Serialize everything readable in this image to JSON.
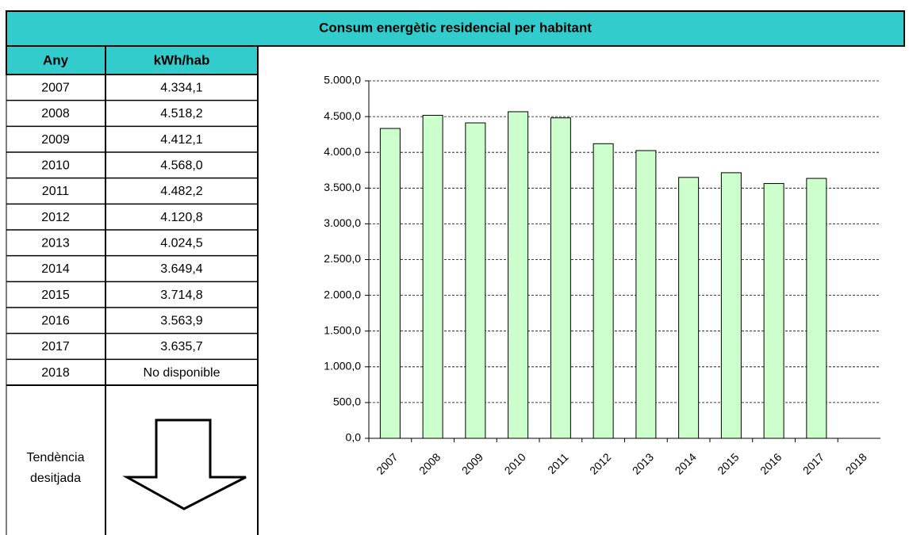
{
  "title": "Consum energètic residencial per habitant",
  "table": {
    "columns": [
      "Any",
      "kWh/hab"
    ],
    "rows": [
      [
        "2007",
        "4.334,1"
      ],
      [
        "2008",
        "4.518,2"
      ],
      [
        "2009",
        "4.412,1"
      ],
      [
        "2010",
        "4.568,0"
      ],
      [
        "2011",
        "4.482,2"
      ],
      [
        "2012",
        "4.120,8"
      ],
      [
        "2013",
        "4.024,5"
      ],
      [
        "2014",
        "3.649,4"
      ],
      [
        "2015",
        "3.714,8"
      ],
      [
        "2016",
        "3.563,9"
      ],
      [
        "2017",
        "3.635,7"
      ],
      [
        "2018",
        "No disponible"
      ]
    ],
    "trend_label": [
      "Tendència",
      "desitjada"
    ]
  },
  "chart_data": {
    "type": "bar",
    "categories": [
      "2007",
      "2008",
      "2009",
      "2010",
      "2011",
      "2012",
      "2013",
      "2014",
      "2015",
      "2016",
      "2017",
      "2018"
    ],
    "values": [
      4334.1,
      4518.2,
      4412.1,
      4568.0,
      4482.2,
      4120.8,
      4024.5,
      3649.4,
      3714.8,
      3563.9,
      3635.7,
      null
    ],
    "color": "#ccffcc",
    "ylim": [
      0,
      5000
    ],
    "yticks": [
      {
        "value": 0,
        "label": "0,0"
      },
      {
        "value": 500,
        "label": "500,0"
      },
      {
        "value": 1000,
        "label": "1.000,0"
      },
      {
        "value": 1500,
        "label": "1.500,0"
      },
      {
        "value": 2000,
        "label": "2.000,0"
      },
      {
        "value": 2500,
        "label": "2.500,0"
      },
      {
        "value": 3000,
        "label": "3.000,0"
      },
      {
        "value": 3500,
        "label": "3.500,0"
      },
      {
        "value": 4000,
        "label": "4.000,0"
      },
      {
        "value": 4500,
        "label": "4.500,0"
      },
      {
        "value": 5000,
        "label": "5.000,0"
      }
    ],
    "grid": true
  }
}
